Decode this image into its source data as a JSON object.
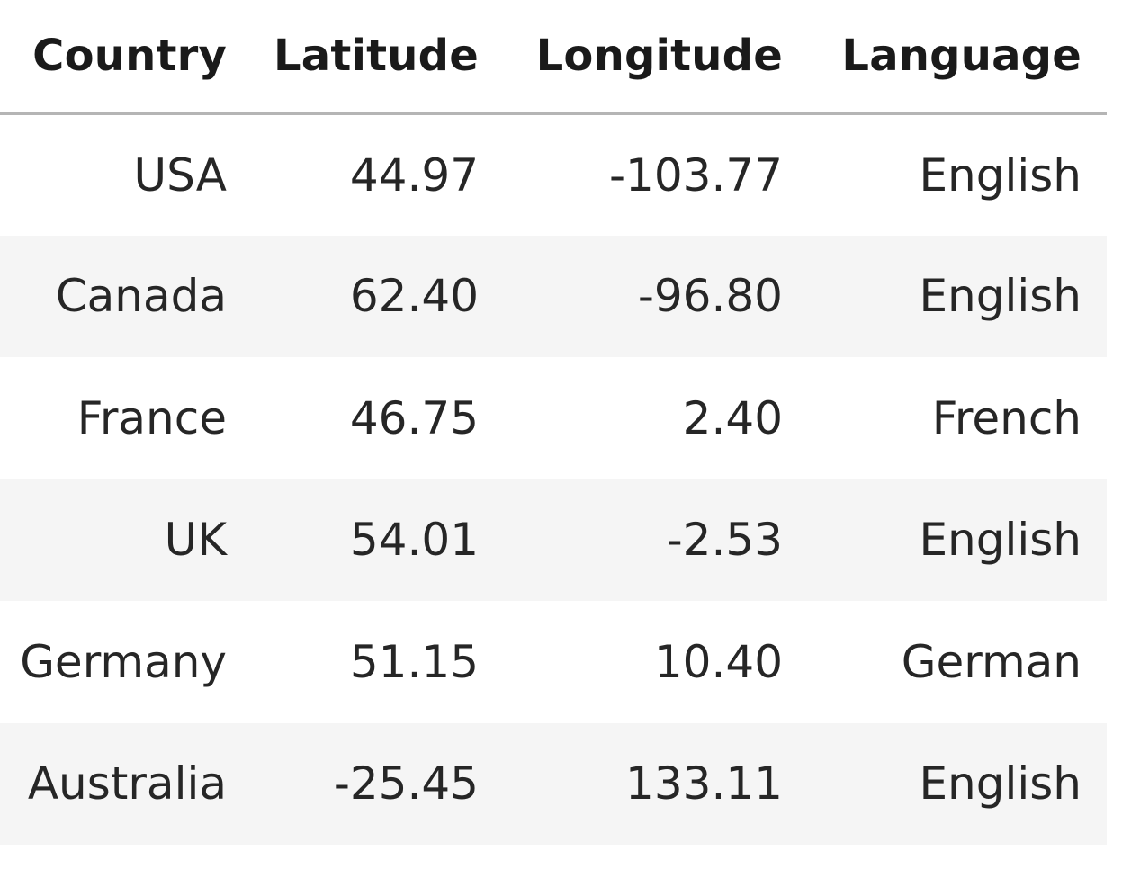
{
  "table": {
    "headers": [
      "Country",
      "Latitude",
      "Longitude",
      "Language"
    ],
    "rows": [
      [
        "USA",
        "44.97",
        "-103.77",
        "English"
      ],
      [
        "Canada",
        "62.40",
        "-96.80",
        "English"
      ],
      [
        "France",
        "46.75",
        "2.40",
        "French"
      ],
      [
        "UK",
        "54.01",
        "-2.53",
        "English"
      ],
      [
        "Germany",
        "51.15",
        "10.40",
        "German"
      ],
      [
        "Australia",
        "-25.45",
        "133.11",
        "English"
      ]
    ]
  },
  "colors": {
    "header_rule": "#b5b5b5",
    "row_stripe": "#f5f5f5",
    "background": "#ffffff",
    "text": "#262626"
  }
}
